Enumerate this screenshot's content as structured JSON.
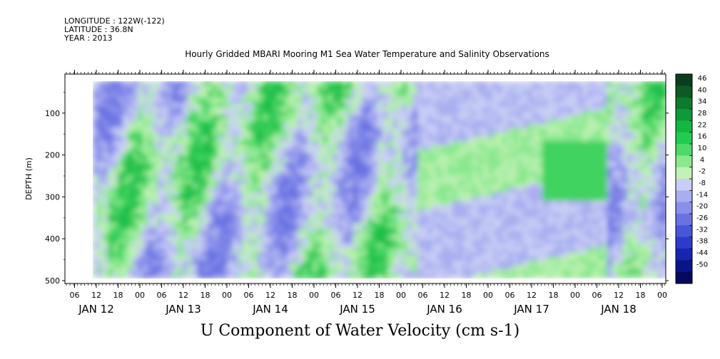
{
  "meta": {
    "longitude": "LONGITUDE : 122W(-122)",
    "latitude": "LATITUDE : 36.8N",
    "year": "YEAR : 2013"
  },
  "chart_data": {
    "type": "heatmap",
    "title": "Hourly Gridded MBARI Mooring M1 Sea Water Temperature and Salinity Observations",
    "xlabel": "U Component of Water Velocity (cm s-1)",
    "ylabel": "DEPTH (m)",
    "yticks": [
      100,
      200,
      300,
      400,
      500
    ],
    "ylim": [
      500,
      0
    ],
    "hour_ticks": [
      "06",
      "12",
      "18",
      "00",
      "06",
      "12",
      "18",
      "00",
      "06",
      "12",
      "18",
      "00",
      "06",
      "12",
      "18",
      "00",
      "06",
      "12",
      "18",
      "00",
      "06",
      "12",
      "18",
      "00",
      "06",
      "12",
      "18",
      "00"
    ],
    "day_labels": [
      "JAN 12",
      "JAN 13",
      "JAN 14",
      "JAN 15",
      "JAN 16",
      "JAN 17",
      "JAN 18"
    ],
    "colorbar_labels": [
      "46",
      "40",
      "34",
      "28",
      "22",
      "16",
      "10",
      "4",
      "-2",
      "-8",
      "-14",
      "-20",
      "-26",
      "-32",
      "-38",
      "-44",
      "-50"
    ],
    "colorbar_colors": [
      "#0a3d1e",
      "#0c5a24",
      "#0d7a2d",
      "#0f9a37",
      "#12b840",
      "#22cc52",
      "#4ed968",
      "#8ae88f",
      "#c3f2b8",
      "#c8cdf5",
      "#a9aef0",
      "#8a90ea",
      "#6a72e2",
      "#4a56d8",
      "#2c3bcc",
      "#1626b0",
      "#0a148a",
      "#040a5e"
    ],
    "colors": {
      "green": "#22cc52",
      "light_green": "#a8eea8",
      "lavender": "#a9aef0",
      "blue": "#6a72e2"
    }
  }
}
